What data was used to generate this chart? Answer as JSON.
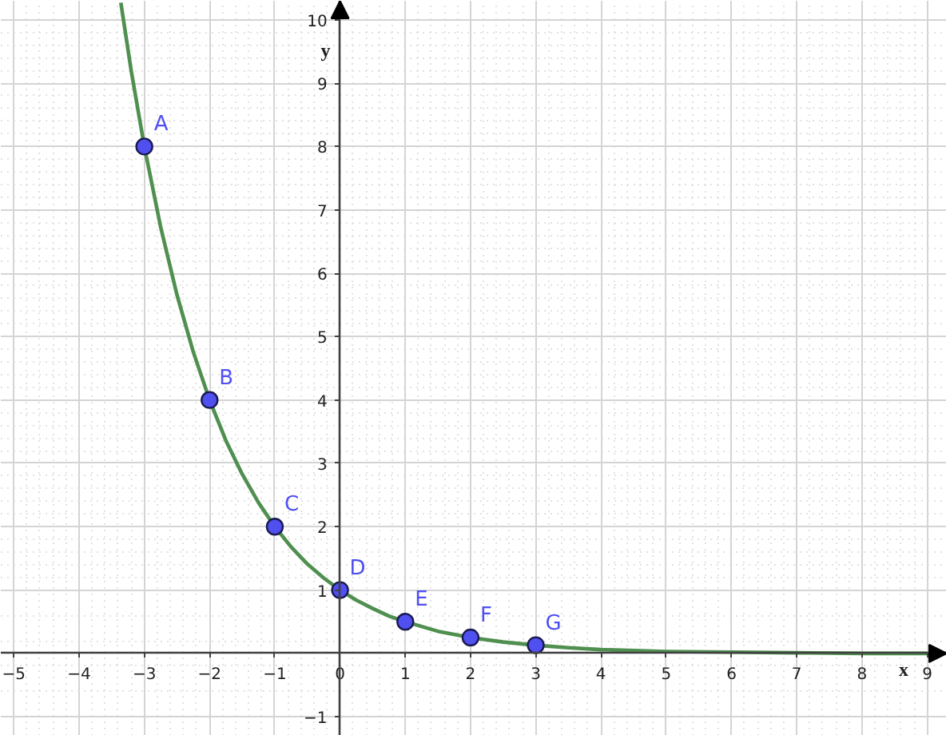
{
  "chart_data": {
    "type": "line",
    "xlabel": "x",
    "ylabel": "y",
    "xlim": [
      -5.2,
      9.3
    ],
    "ylim": [
      -1.3,
      10.3
    ],
    "xticks": [
      -5,
      -4,
      -3,
      -2,
      -1,
      0,
      1,
      2,
      3,
      4,
      5,
      6,
      7,
      8,
      9
    ],
    "yticks": [
      -1,
      1,
      2,
      3,
      4,
      5,
      6,
      7,
      8,
      9,
      10
    ],
    "grid": true,
    "series": [
      {
        "color": "#4f8f4f",
        "marker": "none",
        "line_style": "solid",
        "x": [
          -3.36,
          -3.2,
          -3,
          -2.75,
          -2.5,
          -2.25,
          -2,
          -1.75,
          -1.5,
          -1.25,
          -1,
          -0.75,
          -0.5,
          -0.25,
          0,
          0.25,
          0.5,
          0.75,
          1,
          1.5,
          2,
          2.5,
          3,
          3.5,
          4,
          5,
          6,
          7,
          8,
          9
        ],
        "values": [
          10.27,
          9.19,
          8,
          6.73,
          5.66,
          4.76,
          4,
          3.36,
          2.83,
          2.38,
          2,
          1.68,
          1.41,
          1.19,
          1,
          0.84,
          0.71,
          0.59,
          0.5,
          0.35,
          0.25,
          0.18,
          0.13,
          0.09,
          0.06,
          0.03,
          0.02,
          0.01,
          0,
          0
        ]
      },
      {
        "type": "scatter",
        "color": "#5050f0",
        "marker": "circle",
        "x": [
          -3,
          -2,
          -1,
          0,
          1,
          2,
          3
        ],
        "values": [
          8,
          4,
          2,
          1,
          0.5,
          0.25,
          0.13
        ]
      }
    ],
    "annotations": [
      {
        "text": "A",
        "x": -3,
        "y": 8
      },
      {
        "text": "B",
        "x": -2,
        "y": 4
      },
      {
        "text": "C",
        "x": -1,
        "y": 2
      },
      {
        "text": "D",
        "x": 0,
        "y": 1
      },
      {
        "text": "E",
        "x": 1,
        "y": 0.5
      },
      {
        "text": "F",
        "x": 2,
        "y": 0.25
      },
      {
        "text": "G",
        "x": 3,
        "y": 0.13
      }
    ]
  }
}
